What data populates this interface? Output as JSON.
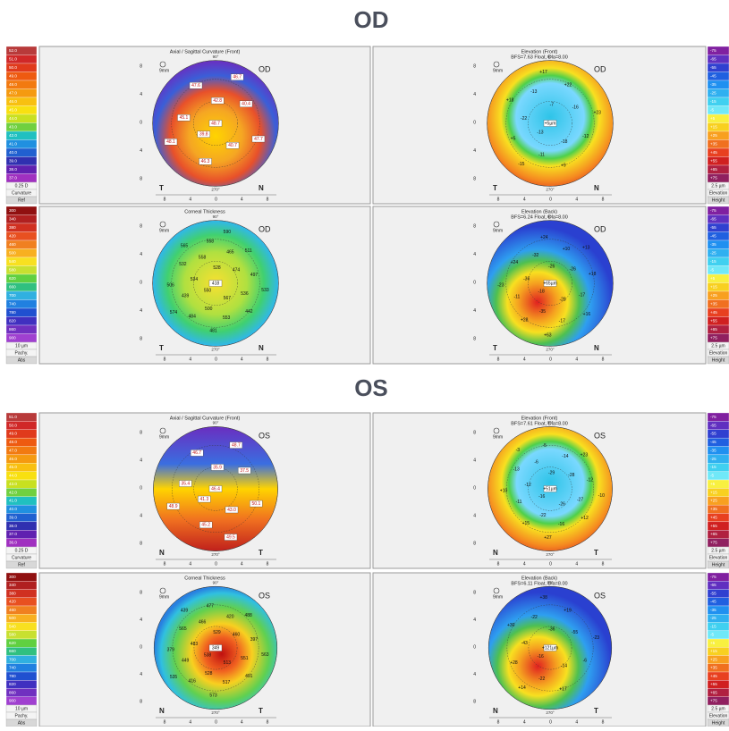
{
  "axis_ticks": [
    "8",
    "4",
    "0",
    "4",
    "8"
  ],
  "sections": [
    {
      "heading": "OD",
      "scales": [
        {
          "values": [
            "52.0",
            "51.0",
            "50.0",
            "49.0",
            "48.0",
            "47.0",
            "46.0",
            "45.0",
            "44.0",
            "43.0",
            "42.0",
            "41.0",
            "40.0",
            "39.0",
            "38.0",
            "37.0"
          ],
          "footer": [
            "0.25 D",
            "Curvature",
            "Ref"
          ],
          "kind": "curv"
        },
        {
          "values": [
            "-75",
            "-65",
            "-55",
            "-45",
            "-35",
            "-25",
            "-15",
            "-5",
            "+5",
            "+15",
            "+25",
            "+35",
            "+45",
            "+55",
            "+65",
            "+75"
          ],
          "footer": [
            "2.5 µm",
            "Elevation",
            "Height"
          ],
          "kind": "elev"
        },
        {
          "values": [
            "300",
            "340",
            "380",
            "420",
            "460",
            "500",
            "540",
            "580",
            "620",
            "660",
            "700",
            "740",
            "780",
            "820",
            "860",
            "900"
          ],
          "footer": [
            "10 µm",
            "Pachy.",
            "Abs"
          ],
          "kind": "pachy"
        },
        {
          "values": [
            "-75",
            "-65",
            "-55",
            "-45",
            "-35",
            "-25",
            "-15",
            "-5",
            "+5",
            "+15",
            "+25",
            "+35",
            "+45",
            "+55",
            "+65",
            "+75"
          ],
          "footer": [
            "2.5 µm",
            "Elevation",
            "Height"
          ],
          "kind": "elev"
        }
      ],
      "panels": [
        {
          "title": "Axial / Sagittal Curvature (Front)",
          "eye": "OD",
          "left": "T",
          "right": "N",
          "mm": "9mm",
          "top": "90°",
          "bottom": "270°",
          "kind": "curv",
          "labels": [
            "48.7",
            "39.8",
            "42.8",
            "40.7",
            "45.1",
            "40.4",
            "46.3",
            "47.6",
            "47.7",
            "48.1",
            "46.7"
          ]
        },
        {
          "title": "Elevation (Front)",
          "subtitle": "BFS=7.63 Float, Dia=8.00",
          "eye": "OD",
          "left": "T",
          "right": "N",
          "mm": "9mm",
          "top": "90°",
          "bottom": "270°",
          "kind": "elevf",
          "labels": [
            "+5µm",
            "-13",
            "-7",
            "-18",
            "-22",
            "-16",
            "-11",
            "-13",
            "-12",
            "+5",
            "+22",
            "+9",
            "+18",
            "+23",
            "-15",
            "+17"
          ]
        },
        {
          "title": "Corneal Thickness",
          "eye": "OD",
          "left": "T",
          "right": "N",
          "mm": "9mm",
          "top": "90°",
          "bottom": "270°",
          "kind": "pachy",
          "labels": [
            "418",
            "550",
            "528",
            "567",
            "534",
            "474",
            "500",
            "558",
            "536",
            "439",
            "465",
            "553",
            "532",
            "497",
            "484",
            "558",
            "442",
            "506",
            "511",
            "481",
            "565",
            "533",
            "574",
            "590"
          ]
        },
        {
          "title": "Elevation (Back)",
          "subtitle": "BFS=6.24 Float, Dia=8.00",
          "eye": "OD",
          "left": "T",
          "right": "N",
          "mm": "9mm",
          "top": "90°",
          "bottom": "270°",
          "kind": "elevb",
          "labels": [
            "+65µm",
            "-18",
            "-26",
            "-28",
            "-36",
            "-26",
            "-35",
            "-32",
            "-17",
            "-11",
            "+10",
            "-17",
            "+24",
            "+18",
            "+28",
            "+24",
            "+16",
            "-23",
            "+13",
            "+63"
          ]
        }
      ]
    },
    {
      "heading": "OS",
      "scales": [
        {
          "values": [
            "51.0",
            "50.0",
            "49.0",
            "48.0",
            "47.0",
            "46.0",
            "45.0",
            "44.0",
            "43.0",
            "42.0",
            "41.0",
            "40.0",
            "39.0",
            "38.0",
            "37.0",
            "36.0"
          ],
          "footer": [
            "0.25 D",
            "Curvature",
            "Ref"
          ],
          "kind": "curv"
        },
        {
          "values": [
            "-75",
            "-65",
            "-55",
            "-45",
            "-35",
            "-25",
            "-15",
            "-5",
            "+5",
            "+15",
            "+25",
            "+35",
            "+45",
            "+55",
            "+65",
            "+75"
          ],
          "footer": [
            "2.5 µm",
            "Elevation",
            "Height"
          ],
          "kind": "elev"
        },
        {
          "values": [
            "300",
            "340",
            "380",
            "420",
            "460",
            "500",
            "540",
            "580",
            "620",
            "660",
            "700",
            "740",
            "780",
            "820",
            "860",
            "900"
          ],
          "footer": [
            "10 µm",
            "Pachy.",
            "Abs"
          ],
          "kind": "pachy"
        },
        {
          "values": [
            "-75",
            "-65",
            "-55",
            "-45",
            "-35",
            "-25",
            "-15",
            "-5",
            "+5",
            "+15",
            "+25",
            "+35",
            "+45",
            "+55",
            "+65",
            "+75"
          ],
          "footer": [
            "2.5 µm",
            "Elevation",
            "Height"
          ],
          "kind": "elev"
        }
      ],
      "panels": [
        {
          "title": "Axial / Sagittal Curvature (Front)",
          "eye": "OS",
          "left": "N",
          "right": "T",
          "mm": "9mm",
          "top": "90°",
          "bottom": "270°",
          "kind": "curv2",
          "labels": [
            "46.4",
            "41.3",
            "35.9",
            "43.0",
            "35.4",
            "37.5",
            "45.2",
            "46.7",
            "50.1",
            "48.9",
            "48.7",
            "49.5"
          ]
        },
        {
          "title": "Elevation (Front)",
          "subtitle": "BFS=7.61 Float, Dia=8.00",
          "eye": "OS",
          "left": "N",
          "right": "T",
          "mm": "9mm",
          "top": "90°",
          "bottom": "270°",
          "kind": "elevf2",
          "labels": [
            "+51µm",
            "-16",
            "-29",
            "-26",
            "-12",
            "-28",
            "-22",
            "-6",
            "-27",
            "-11",
            "-14",
            "-16",
            "-13",
            "-12",
            "+15",
            "-5",
            "+12",
            "+10",
            "+23",
            "+27",
            "-3",
            "-10"
          ]
        },
        {
          "title": "Corneal Thickness",
          "eye": "OS",
          "left": "N",
          "right": "T",
          "mm": "9mm",
          "top": "90°",
          "bottom": "270°",
          "kind": "pachy2",
          "labels": [
            "349",
            "538",
            "529",
            "513",
            "483",
            "460",
            "528",
            "466",
            "551",
            "449",
            "420",
            "517",
            "565",
            "397",
            "416",
            "477",
            "491",
            "379",
            "488",
            "573",
            "439",
            "563",
            "535"
          ]
        },
        {
          "title": "Elevation (Back)",
          "subtitle": "BFS=6.11 Float, Dia=8.00",
          "eye": "OS",
          "left": "N",
          "right": "T",
          "mm": "9mm",
          "top": "90°",
          "bottom": "270°",
          "kind": "elevb2",
          "labels": [
            "+121µm",
            "-16",
            "-36",
            "-14",
            "-43",
            "-55",
            "-22",
            "-22",
            "-6",
            "+28",
            "+19",
            "+17",
            "+30",
            "-23",
            "+14",
            "+38"
          ]
        }
      ]
    }
  ]
}
